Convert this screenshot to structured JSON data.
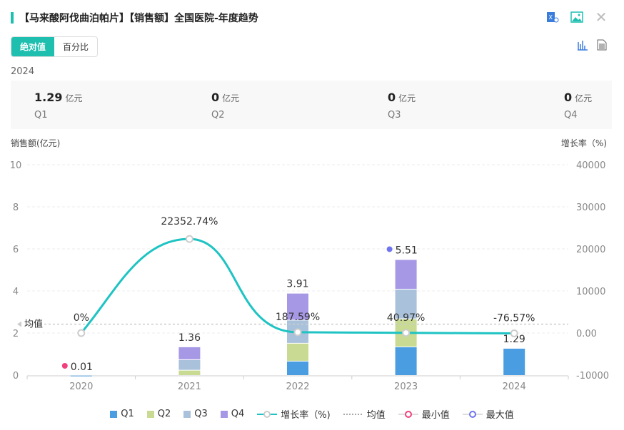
{
  "header": {
    "title": "【马来酸阿伐曲泊帕片】【销售额】全国医院-年度趋势",
    "icons": [
      "excel-export-icon",
      "image-export-icon",
      "close-icon"
    ]
  },
  "toggle": {
    "absolute": "绝对值",
    "percent": "百分比"
  },
  "summary": {
    "year": "2024",
    "unit": "亿元",
    "items": [
      {
        "value": "1.29",
        "label": "Q1"
      },
      {
        "value": "0",
        "label": "Q2"
      },
      {
        "value": "0",
        "label": "Q3"
      },
      {
        "value": "0",
        "label": "Q4"
      }
    ]
  },
  "colors": {
    "Q1": "#4a9de0",
    "Q2": "#c9da92",
    "Q3": "#a9c1da",
    "Q4": "#a798e6",
    "growth": "#1fc3c3",
    "min": "#f0417e",
    "max": "#6f74f0"
  },
  "chart_data": {
    "type": "bar+line",
    "ylabel": "销售额(亿元)",
    "y2label": "增长率（%)",
    "ylim": [
      0,
      10
    ],
    "yticks": [
      "0",
      "2",
      "4",
      "6",
      "8",
      "10"
    ],
    "y2lim": [
      -10000,
      40000
    ],
    "y2ticks": [
      "-10000",
      "0.00",
      "10000",
      "20000",
      "30000",
      "40000"
    ],
    "categories": [
      "2020",
      "2021",
      "2022",
      "2023",
      "2024"
    ],
    "series": [
      {
        "name": "Q1",
        "values": [
          0.01,
          0,
          0.68,
          1.36,
          1.29
        ]
      },
      {
        "name": "Q2",
        "values": [
          0,
          0.25,
          0.85,
          1.33,
          0
        ]
      },
      {
        "name": "Q3",
        "values": [
          0,
          0.5,
          1.1,
          1.41,
          0
        ]
      },
      {
        "name": "Q4",
        "values": [
          0,
          0.61,
          1.28,
          1.41,
          0
        ]
      }
    ],
    "totals": [
      "0.01",
      "1.36",
      "3.91",
      "5.51",
      "1.29"
    ],
    "growth": {
      "name": "增长率（%)",
      "values": [
        0,
        22352.74,
        187.59,
        40.97,
        -76.57
      ],
      "labels": [
        "0%",
        "22352.74%",
        "187.59%",
        "40.97%",
        "-76.57%"
      ]
    },
    "mean": {
      "label": "均值",
      "value": 2.42
    },
    "min": {
      "label": "最小值",
      "index": 0
    },
    "max": {
      "label": "最大值",
      "index": 3
    },
    "legend": [
      "Q1",
      "Q2",
      "Q3",
      "Q4",
      "增长率（%)",
      "均值",
      "最小值",
      "最大值"
    ]
  }
}
